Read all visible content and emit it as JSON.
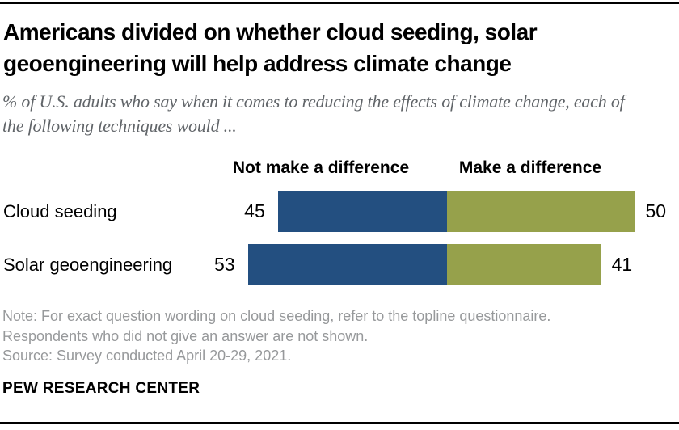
{
  "title": "Americans divided on whether cloud seeding, solar geoengineering will help address climate change",
  "subtitle": "% of U.S. adults who say when it comes to reducing the effects of climate change, each of the following techniques would ...",
  "chart_data": {
    "type": "bar",
    "orientation": "horizontal-diverging",
    "title": "Americans divided on whether cloud seeding, solar geoengineering will help address climate change",
    "categories": [
      "Cloud seeding",
      "Solar geoengineering"
    ],
    "series": [
      {
        "name": "Not make a difference",
        "side": "left",
        "color": "#234f80",
        "values": [
          45,
          53
        ]
      },
      {
        "name": "Make a difference",
        "side": "right",
        "color": "#96a14b",
        "values": [
          50,
          41
        ]
      }
    ],
    "unit": "%",
    "value_labels_shown": true,
    "xlim": [
      0,
      100
    ],
    "legend_position": "top",
    "grid": false
  },
  "notes": [
    "Note: For exact question wording on cloud seeding, refer to the topline questionnaire.",
    "Respondents who did not give an answer are not shown.",
    "Source: Survey conducted April 20-29, 2021."
  ],
  "footer": {
    "brand": "PEW RESEARCH CENTER"
  }
}
